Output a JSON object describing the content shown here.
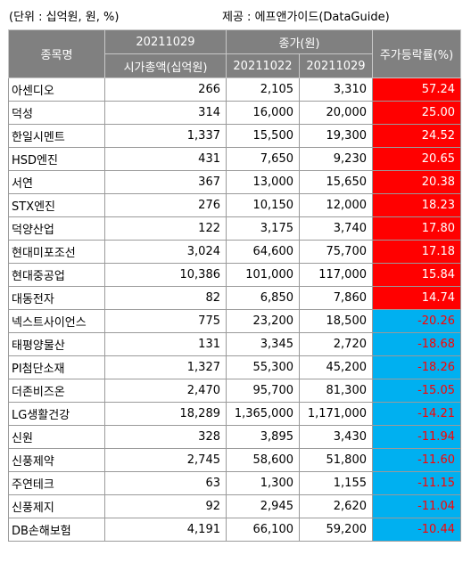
{
  "caption_left": "(단위 : 십억원, 원, %)",
  "caption_right": "제공 : 에프앤가이드(DataGuide)",
  "header": {
    "name": "종목명",
    "date_group": "20211029",
    "market_cap": "시가총액(십억원)",
    "close_group": "종가(원)",
    "close_prev": "20211022",
    "close_curr": "20211029",
    "change": "주가등락률(%)"
  },
  "colors": {
    "header_bg": "#808080",
    "up": "#ff0000",
    "down": "#00b0f0"
  },
  "rows": [
    {
      "name": "아센디오",
      "cap": "266",
      "prev": "2,105",
      "curr": "3,310",
      "chg": "57.24",
      "dir": "up"
    },
    {
      "name": "덕성",
      "cap": "314",
      "prev": "16,000",
      "curr": "20,000",
      "chg": "25.00",
      "dir": "up"
    },
    {
      "name": "한일시멘트",
      "cap": "1,337",
      "prev": "15,500",
      "curr": "19,300",
      "chg": "24.52",
      "dir": "up"
    },
    {
      "name": "HSD엔진",
      "cap": "431",
      "prev": "7,650",
      "curr": "9,230",
      "chg": "20.65",
      "dir": "up"
    },
    {
      "name": "서연",
      "cap": "367",
      "prev": "13,000",
      "curr": "15,650",
      "chg": "20.38",
      "dir": "up"
    },
    {
      "name": "STX엔진",
      "cap": "276",
      "prev": "10,150",
      "curr": "12,000",
      "chg": "18.23",
      "dir": "up"
    },
    {
      "name": "덕양산업",
      "cap": "122",
      "prev": "3,175",
      "curr": "3,740",
      "chg": "17.80",
      "dir": "up"
    },
    {
      "name": "현대미포조선",
      "cap": "3,024",
      "prev": "64,600",
      "curr": "75,700",
      "chg": "17.18",
      "dir": "up"
    },
    {
      "name": "현대중공업",
      "cap": "10,386",
      "prev": "101,000",
      "curr": "117,000",
      "chg": "15.84",
      "dir": "up"
    },
    {
      "name": "대동전자",
      "cap": "82",
      "prev": "6,850",
      "curr": "7,860",
      "chg": "14.74",
      "dir": "up"
    },
    {
      "name": "넥스트사이언스",
      "cap": "775",
      "prev": "23,200",
      "curr": "18,500",
      "chg": "-20.26",
      "dir": "down"
    },
    {
      "name": "태평양물산",
      "cap": "131",
      "prev": "3,345",
      "curr": "2,720",
      "chg": "-18.68",
      "dir": "down"
    },
    {
      "name": "PI첨단소재",
      "cap": "1,327",
      "prev": "55,300",
      "curr": "45,200",
      "chg": "-18.26",
      "dir": "down"
    },
    {
      "name": "더존비즈온",
      "cap": "2,470",
      "prev": "95,700",
      "curr": "81,300",
      "chg": "-15.05",
      "dir": "down"
    },
    {
      "name": "LG생활건강",
      "cap": "18,289",
      "prev": "1,365,000",
      "curr": "1,171,000",
      "chg": "-14.21",
      "dir": "down"
    },
    {
      "name": "신원",
      "cap": "328",
      "prev": "3,895",
      "curr": "3,430",
      "chg": "-11.94",
      "dir": "down"
    },
    {
      "name": "신풍제약",
      "cap": "2,745",
      "prev": "58,600",
      "curr": "51,800",
      "chg": "-11.60",
      "dir": "down"
    },
    {
      "name": "주연테크",
      "cap": "63",
      "prev": "1,300",
      "curr": "1,155",
      "chg": "-11.15",
      "dir": "down"
    },
    {
      "name": "신풍제지",
      "cap": "92",
      "prev": "2,945",
      "curr": "2,620",
      "chg": "-11.04",
      "dir": "down"
    },
    {
      "name": "DB손해보험",
      "cap": "4,191",
      "prev": "66,100",
      "curr": "59,200",
      "chg": "-10.44",
      "dir": "down"
    }
  ]
}
